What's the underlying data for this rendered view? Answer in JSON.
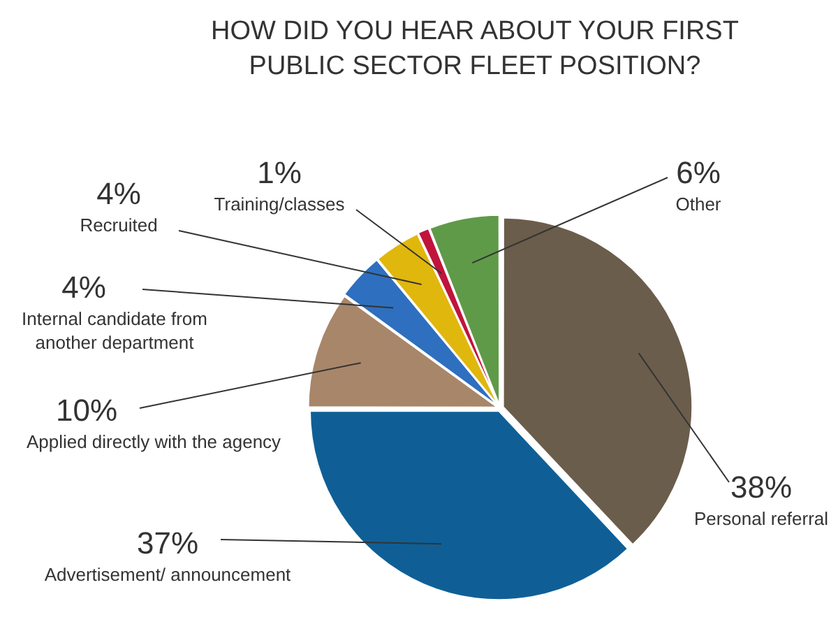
{
  "chart_data": {
    "type": "pie",
    "title": "HOW DID YOU HEAR ABOUT YOUR FIRST PUBLIC SECTOR FLEET POSITION?",
    "categories": [
      "Personal referral",
      "Advertisement/ announcement",
      "Applied directly with the agency",
      "Internal candidate from another department",
      "Recruited",
      "Training/classes",
      "Other"
    ],
    "values": [
      38,
      37,
      10,
      4,
      4,
      1,
      6
    ],
    "value_labels": [
      "38%",
      "37%",
      "10%",
      "4%",
      "4%",
      "1%",
      "6%"
    ],
    "colors": [
      "#6b5d4b",
      "#0f5f96",
      "#a8866a",
      "#2e6fbf",
      "#e0b70c",
      "#c0143c",
      "#5f9a48"
    ]
  }
}
